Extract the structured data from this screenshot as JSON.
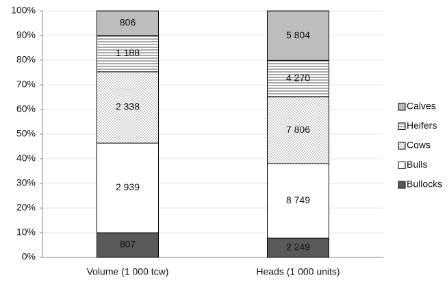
{
  "chart_data": {
    "type": "percent_stacked_bar",
    "categories": [
      "Volume (1 000 tcw)",
      "Heads (1 000 units)"
    ],
    "series": [
      {
        "name": "Bullocks",
        "color": "#595959",
        "pattern": "solid",
        "values": [
          807,
          2249
        ],
        "value_labels": [
          "807",
          "2 249"
        ]
      },
      {
        "name": "Bulls",
        "color": "#ffffff",
        "pattern": "solid",
        "values": [
          2939,
          8749
        ],
        "value_labels": [
          "2 939",
          "8 749"
        ]
      },
      {
        "name": "Cows",
        "color": "#ffffff",
        "pattern": "dots",
        "values": [
          2338,
          7806
        ],
        "value_labels": [
          "2 338",
          "7 806"
        ]
      },
      {
        "name": "Heifers",
        "color": "#ffffff",
        "pattern": "hlines",
        "values": [
          1188,
          4270
        ],
        "value_labels": [
          "1 188",
          "4 270"
        ]
      },
      {
        "name": "Calves",
        "color": "#bdbdbd",
        "pattern": "solid",
        "values": [
          806,
          5804
        ],
        "value_labels": [
          "806",
          "5 804"
        ]
      }
    ],
    "ylim": [
      0,
      100
    ],
    "yticks": [
      {
        "value": 0,
        "label": "0%"
      },
      {
        "value": 10,
        "label": "10%"
      },
      {
        "value": 20,
        "label": "20%"
      },
      {
        "value": 30,
        "label": "30%"
      },
      {
        "value": 40,
        "label": "40%"
      },
      {
        "value": 50,
        "label": "50%"
      },
      {
        "value": 60,
        "label": "60%"
      },
      {
        "value": 70,
        "label": "70%"
      },
      {
        "value": 80,
        "label": "80%"
      },
      {
        "value": 90,
        "label": "90%"
      },
      {
        "value": 100,
        "label": "100%"
      }
    ],
    "grid": true,
    "legend": "right"
  }
}
